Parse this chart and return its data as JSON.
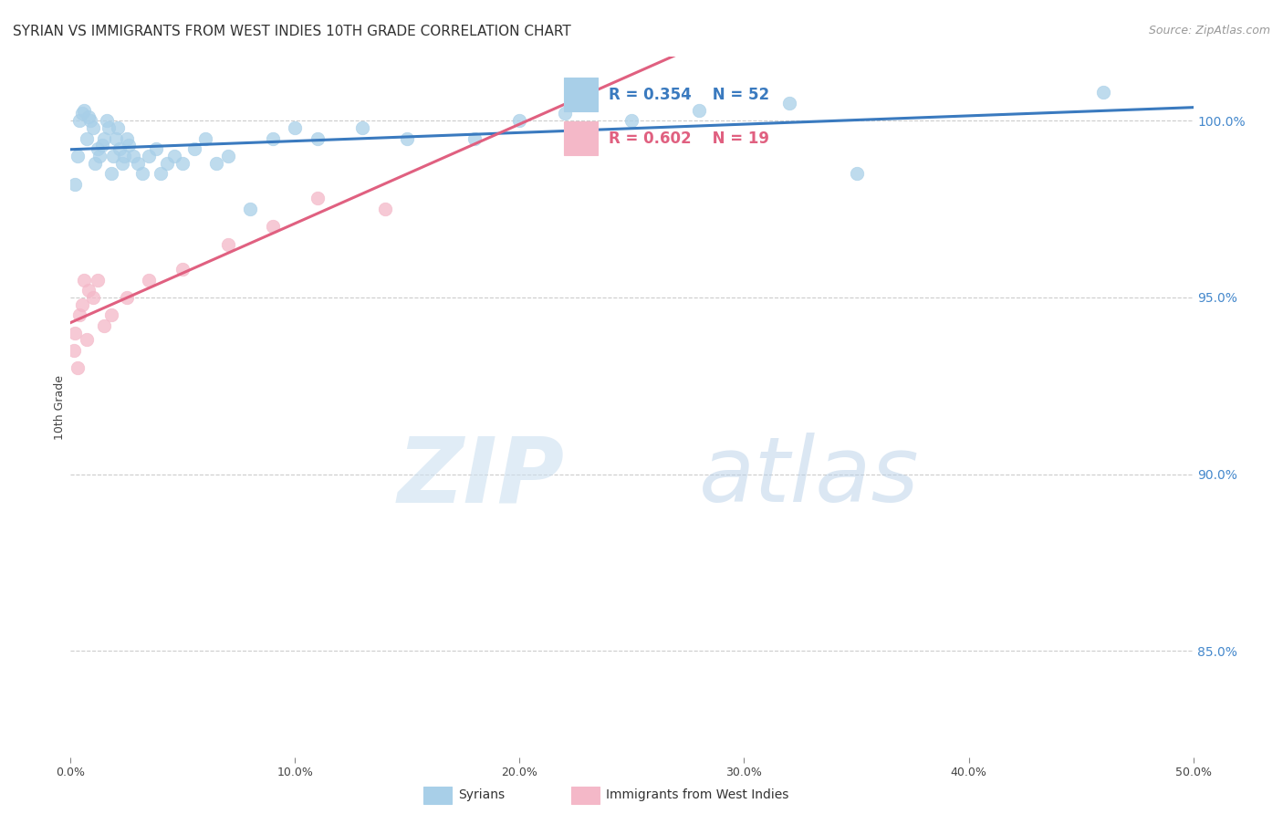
{
  "title": "SYRIAN VS IMMIGRANTS FROM WEST INDIES 10TH GRADE CORRELATION CHART",
  "source": "Source: ZipAtlas.com",
  "ylabel": "10th Grade",
  "xlim": [
    0.0,
    50.0
  ],
  "ylim": [
    82.0,
    101.8
  ],
  "xticks": [
    0.0,
    10.0,
    20.0,
    30.0,
    40.0,
    50.0
  ],
  "xticklabels": [
    "0.0%",
    "10.0%",
    "20.0%",
    "30.0%",
    "40.0%",
    "50.0%"
  ],
  "yticks_right": [
    85.0,
    90.0,
    95.0,
    100.0
  ],
  "ytick_labels_right": [
    "85.0%",
    "90.0%",
    "95.0%",
    "100.0%"
  ],
  "blue_color": "#a8cfe8",
  "pink_color": "#f4b8c8",
  "blue_line_color": "#3a7abf",
  "pink_line_color": "#e06080",
  "legend_R1": "R = 0.354",
  "legend_N1": "N = 52",
  "legend_R2": "R = 0.602",
  "legend_N2": "N = 19",
  "watermark_zip_color": "#cce0f0",
  "watermark_atlas_color": "#b8d0e8",
  "blue_scatter_x": [
    0.2,
    0.3,
    0.4,
    0.5,
    0.6,
    0.7,
    0.8,
    0.9,
    1.0,
    1.1,
    1.2,
    1.3,
    1.4,
    1.5,
    1.6,
    1.7,
    1.8,
    1.9,
    2.0,
    2.1,
    2.2,
    2.3,
    2.4,
    2.5,
    2.6,
    2.8,
    3.0,
    3.2,
    3.5,
    3.8,
    4.0,
    4.3,
    4.6,
    5.0,
    5.5,
    6.0,
    6.5,
    7.0,
    8.0,
    9.0,
    10.0,
    11.0,
    13.0,
    15.0,
    18.0,
    20.0,
    22.0,
    25.0,
    28.0,
    32.0,
    46.0,
    35.0
  ],
  "blue_scatter_y": [
    98.2,
    99.0,
    100.0,
    100.2,
    100.3,
    99.5,
    100.1,
    100.0,
    99.8,
    98.8,
    99.2,
    99.0,
    99.3,
    99.5,
    100.0,
    99.8,
    98.5,
    99.0,
    99.5,
    99.8,
    99.2,
    98.8,
    99.0,
    99.5,
    99.3,
    99.0,
    98.8,
    98.5,
    99.0,
    99.2,
    98.5,
    98.8,
    99.0,
    98.8,
    99.2,
    99.5,
    98.8,
    99.0,
    97.5,
    99.5,
    99.8,
    99.5,
    99.8,
    99.5,
    99.5,
    100.0,
    100.2,
    100.0,
    100.3,
    100.5,
    100.8,
    98.5
  ],
  "pink_scatter_x": [
    0.15,
    0.2,
    0.3,
    0.4,
    0.5,
    0.6,
    0.7,
    0.8,
    1.0,
    1.2,
    1.5,
    1.8,
    2.5,
    3.5,
    5.0,
    7.0,
    9.0,
    11.0,
    14.0
  ],
  "pink_scatter_y": [
    93.5,
    94.0,
    93.0,
    94.5,
    94.8,
    95.5,
    93.8,
    95.2,
    95.0,
    95.5,
    94.2,
    94.5,
    95.0,
    95.5,
    95.8,
    96.5,
    97.0,
    97.8,
    97.5
  ],
  "background_color": "#ffffff",
  "grid_color": "#cccccc",
  "title_fontsize": 11,
  "axis_label_fontsize": 9,
  "tick_fontsize": 9,
  "legend_fontsize": 12,
  "source_fontsize": 9
}
